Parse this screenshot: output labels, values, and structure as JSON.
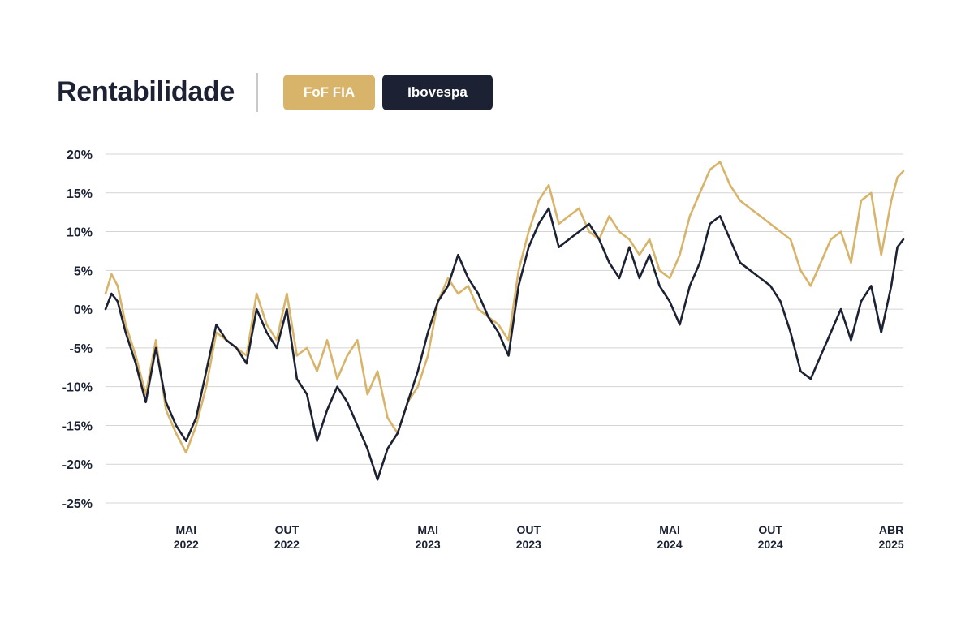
{
  "header": {
    "title": "Rentabilidade",
    "legend": [
      {
        "label": "FoF FIA",
        "color": "#d8b46a"
      },
      {
        "label": "Ibovespa",
        "color": "#1c2233"
      }
    ]
  },
  "chart_data": {
    "type": "line",
    "title": "Rentabilidade",
    "xlabel": "",
    "ylabel": "",
    "ylim": [
      -25,
      20
    ],
    "grid": true,
    "legend_position": "top",
    "y_ticks": [
      20,
      15,
      10,
      5,
      0,
      -5,
      -10,
      -15,
      -20,
      -25
    ],
    "y_tick_labels": [
      "20%",
      "15%",
      "10%",
      "5%",
      "0%",
      "-5%",
      "-10%",
      "-15%",
      "-20%",
      "-25%"
    ],
    "x_ticks": [
      {
        "line1": "MAI",
        "line2": "2022",
        "t": 4
      },
      {
        "line1": "OUT",
        "line2": "2022",
        "t": 9
      },
      {
        "line1": "MAI",
        "line2": "2023",
        "t": 16
      },
      {
        "line1": "OUT",
        "line2": "2023",
        "t": 21
      },
      {
        "line1": "MAI",
        "line2": "2024",
        "t": 28
      },
      {
        "line1": "OUT",
        "line2": "2024",
        "t": 33
      },
      {
        "line1": "ABR",
        "line2": "2025",
        "t": 39
      }
    ],
    "x_range": [
      0,
      39.6
    ],
    "series": [
      {
        "name": "FoF FIA",
        "color": "#d8b46a",
        "x": [
          0,
          0.3,
          0.6,
          1,
          1.5,
          2,
          2.5,
          3,
          3.5,
          4,
          4.5,
          5,
          5.5,
          6,
          6.5,
          7,
          7.5,
          8,
          8.5,
          9,
          9.5,
          10,
          10.5,
          11,
          11.5,
          12,
          12.5,
          13,
          13.5,
          14,
          14.5,
          15,
          15.5,
          16,
          16.5,
          17,
          17.5,
          18,
          18.5,
          19,
          19.5,
          20,
          20.5,
          21,
          21.5,
          22,
          22.5,
          23,
          23.5,
          24,
          24.5,
          25,
          25.5,
          26,
          26.5,
          27,
          27.5,
          28,
          28.5,
          29,
          29.5,
          30,
          30.5,
          31,
          31.5,
          32,
          32.5,
          33,
          33.5,
          34,
          34.5,
          35,
          35.5,
          36,
          36.5,
          37,
          37.5,
          38,
          38.5,
          39,
          39.3,
          39.6
        ],
        "values": [
          2,
          4.5,
          3,
          -2,
          -6,
          -11,
          -4,
          -13,
          -16,
          -18.5,
          -15,
          -10,
          -3,
          -4,
          -5,
          -6,
          2,
          -2,
          -4,
          2,
          -6,
          -5,
          -8,
          -4,
          -9,
          -6,
          -4,
          -11,
          -8,
          -14,
          -16,
          -12,
          -10,
          -6,
          1,
          4,
          2,
          3,
          0,
          -1,
          -2,
          -4,
          5,
          10,
          14,
          16,
          11,
          12,
          13,
          10,
          9,
          12,
          10,
          9,
          7,
          9,
          5,
          4,
          7,
          12,
          15,
          18,
          19,
          16,
          14,
          13,
          12,
          11,
          10,
          9,
          5,
          3,
          6,
          9,
          10,
          6,
          14,
          15,
          7,
          14,
          17,
          17.8
        ]
      },
      {
        "name": "Ibovespa",
        "color": "#1c2233",
        "x": [
          0,
          0.3,
          0.6,
          1,
          1.5,
          2,
          2.5,
          3,
          3.5,
          4,
          4.5,
          5,
          5.5,
          6,
          6.5,
          7,
          7.5,
          8,
          8.5,
          9,
          9.5,
          10,
          10.5,
          11,
          11.5,
          12,
          12.5,
          13,
          13.5,
          14,
          14.5,
          15,
          15.5,
          16,
          16.5,
          17,
          17.5,
          18,
          18.5,
          19,
          19.5,
          20,
          20.5,
          21,
          21.5,
          22,
          22.5,
          23,
          23.5,
          24,
          24.5,
          25,
          25.5,
          26,
          26.5,
          27,
          27.5,
          28,
          28.5,
          29,
          29.5,
          30,
          30.5,
          31,
          31.5,
          32,
          32.5,
          33,
          33.5,
          34,
          34.5,
          35,
          35.5,
          36,
          36.5,
          37,
          37.5,
          38,
          38.5,
          39,
          39.3,
          39.6
        ],
        "values": [
          0,
          2,
          1,
          -3,
          -7,
          -12,
          -5,
          -12,
          -15,
          -17,
          -14,
          -8,
          -2,
          -4,
          -5,
          -7,
          0,
          -3,
          -5,
          0,
          -9,
          -11,
          -17,
          -13,
          -10,
          -12,
          -15,
          -18,
          -22,
          -18,
          -16,
          -12,
          -8,
          -3,
          1,
          3,
          7,
          4,
          2,
          -1,
          -3,
          -6,
          3,
          8,
          11,
          13,
          8,
          9,
          10,
          11,
          9,
          6,
          4,
          8,
          4,
          7,
          3,
          1,
          -2,
          3,
          6,
          11,
          12,
          9,
          6,
          5,
          4,
          3,
          1,
          -3,
          -8,
          -9,
          -6,
          -3,
          0,
          -4,
          1,
          3,
          -3,
          3,
          8,
          9
        ]
      }
    ]
  }
}
